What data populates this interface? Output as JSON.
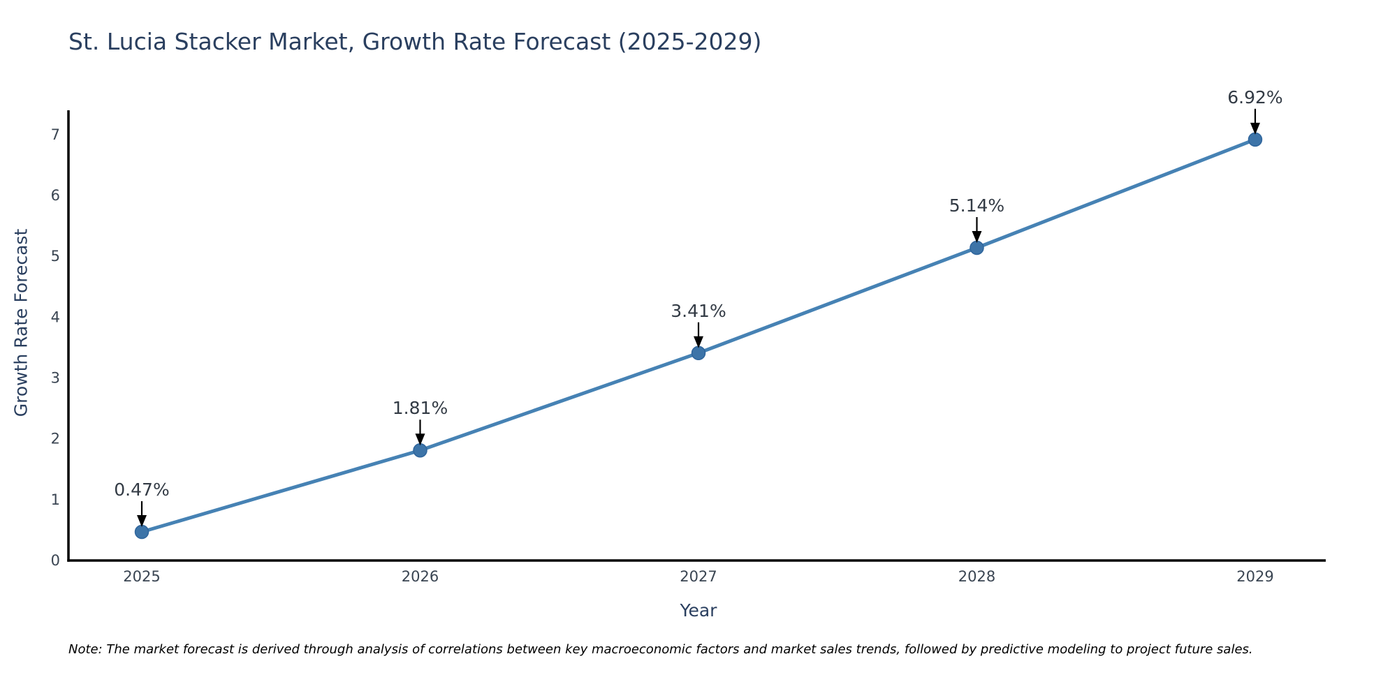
{
  "title": "St. Lucia Stacker Market, Growth Rate Forecast (2025-2029)",
  "note": "Note: The market forecast is derived through analysis of correlations between key macroeconomic factors and market sales trends, followed by predictive modeling to project future sales.",
  "chart_data": {
    "type": "line",
    "x": [
      2025,
      2026,
      2027,
      2028,
      2029
    ],
    "x_tick_labels": [
      "2025",
      "2026",
      "2027",
      "2028",
      "2029"
    ],
    "values": [
      0.47,
      1.81,
      3.41,
      5.14,
      6.92
    ],
    "point_labels": [
      "0.47%",
      "1.81%",
      "3.41%",
      "5.14%",
      "6.92%"
    ],
    "xlabel": "Year",
    "ylabel": "Growth Rate Forecast",
    "y_ticks": [
      0,
      1,
      2,
      3,
      4,
      5,
      6,
      7
    ],
    "ylim": [
      0,
      7.4
    ],
    "xlim": [
      2024.7365,
      2029.2535
    ],
    "grid": false,
    "legend_position": "none",
    "line_color": "#4682b4",
    "marker_color": "#3d74a8",
    "marker_edge_color": "#2f659c",
    "axis_color": "#000000",
    "arrow_color": "#000000",
    "title_color": "#2a3f5f",
    "tick_color": "#3a4552"
  }
}
